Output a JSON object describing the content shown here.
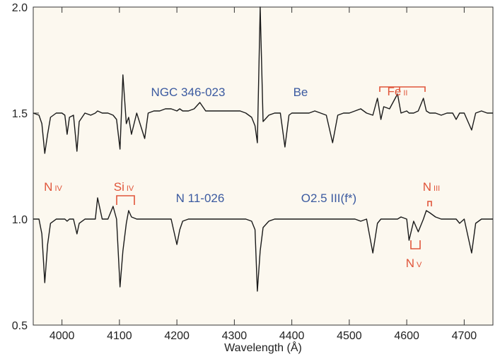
{
  "chart_data": {
    "type": "line",
    "x_label": "Wavelength (Å)",
    "xlim": [
      3950,
      4750
    ],
    "xticks": [
      4000,
      4100,
      4200,
      4300,
      4400,
      4500,
      4600,
      4700
    ],
    "ylim": [
      0.5,
      2.0
    ],
    "yticks": [
      0.5,
      {
        "value": 1,
        "label": "1.0"
      },
      1.5,
      {
        "value": 2,
        "label": "2.0"
      }
    ],
    "x": [
      3950,
      3960,
      3965,
      3970,
      3975,
      3980,
      3990,
      4000,
      4005,
      4009,
      4013,
      4020,
      4026,
      4030,
      4040,
      4050,
      4058,
      4062,
      4070,
      4080,
      4089,
      4095,
      4101,
      4106,
      4112,
      4116,
      4121,
      4130,
      4144,
      4150,
      4160,
      4170,
      4180,
      4190,
      4200,
      4205,
      4210,
      4220,
      4230,
      4240,
      4250,
      4260,
      4270,
      4280,
      4290,
      4300,
      4310,
      4320,
      4330,
      4336,
      4340,
      4345,
      4350,
      4360,
      4370,
      4380,
      4388,
      4395,
      4400,
      4410,
      4420,
      4430,
      4440,
      4450,
      4460,
      4471,
      4480,
      4490,
      4500,
      4510,
      4520,
      4530,
      4541,
      4549,
      4555,
      4560,
      4570,
      4584,
      4590,
      4600,
      4604,
      4612,
      4620,
      4629,
      4634,
      4640,
      4650,
      4660,
      4670,
      4680,
      4686,
      4692,
      4700,
      4713,
      4720,
      4730,
      4740,
      4750
    ],
    "series": [
      {
        "name": "NGC 346-023",
        "color": "#1a1a1a",
        "values": [
          1.5,
          1.49,
          1.45,
          1.31,
          1.4,
          1.48,
          1.5,
          1.5,
          1.49,
          1.4,
          1.48,
          1.49,
          1.32,
          1.46,
          1.5,
          1.49,
          1.5,
          1.51,
          1.5,
          1.5,
          1.49,
          1.47,
          1.33,
          1.68,
          1.45,
          1.48,
          1.4,
          1.5,
          1.38,
          1.5,
          1.51,
          1.51,
          1.52,
          1.52,
          1.51,
          1.52,
          1.51,
          1.51,
          1.52,
          1.55,
          1.51,
          1.51,
          1.51,
          1.51,
          1.51,
          1.51,
          1.51,
          1.5,
          1.48,
          1.44,
          1.36,
          2.0,
          1.46,
          1.49,
          1.5,
          1.5,
          1.34,
          1.49,
          1.5,
          1.5,
          1.5,
          1.5,
          1.51,
          1.5,
          1.49,
          1.36,
          1.49,
          1.5,
          1.5,
          1.51,
          1.52,
          1.5,
          1.49,
          1.57,
          1.47,
          1.53,
          1.52,
          1.59,
          1.5,
          1.51,
          1.5,
          1.5,
          1.51,
          1.57,
          1.51,
          1.5,
          1.5,
          1.49,
          1.5,
          1.5,
          1.47,
          1.5,
          1.5,
          1.42,
          1.5,
          1.51,
          1.5,
          1.5
        ]
      },
      {
        "name": "N 11-026",
        "color": "#1a1a1a",
        "values": [
          1.0,
          1.0,
          0.93,
          0.7,
          0.88,
          0.98,
          1.0,
          1.0,
          1.0,
          0.99,
          1.0,
          1.0,
          0.93,
          0.98,
          1.0,
          1.0,
          1.0,
          1.1,
          1.0,
          1.0,
          1.06,
          1.0,
          0.68,
          0.85,
          0.98,
          1.04,
          1.01,
          1.0,
          1.0,
          1.0,
          1.0,
          1.0,
          1.0,
          1.0,
          0.88,
          0.95,
          0.99,
          1.0,
          1.0,
          1.0,
          1.0,
          1.0,
          1.0,
          1.0,
          1.0,
          1.0,
          1.0,
          1.0,
          0.99,
          0.95,
          0.66,
          0.85,
          0.96,
          0.99,
          1.0,
          1.0,
          1.0,
          1.0,
          1.0,
          1.0,
          1.0,
          1.0,
          1.0,
          1.0,
          1.0,
          1.0,
          1.0,
          1.0,
          1.0,
          1.0,
          0.99,
          1.0,
          0.84,
          0.98,
          1.0,
          1.0,
          1.0,
          1.0,
          1.01,
          1.0,
          0.9,
          0.99,
          0.94,
          1.0,
          1.04,
          1.03,
          1.01,
          1.0,
          1.0,
          1.0,
          1.0,
          0.98,
          1.0,
          0.84,
          0.98,
          1.0,
          1.0,
          1.0
        ]
      }
    ],
    "annotations": [
      {
        "text": "NGC 346-023"
      },
      {
        "text": "Be"
      },
      {
        "text": "Fe",
        "ion": "II"
      },
      {
        "text": "N",
        "ion": "IV"
      },
      {
        "text": "Si",
        "ion": "IV"
      },
      {
        "text": "N 11-026"
      },
      {
        "text": "O2.5 III(f*)"
      },
      {
        "text": "N",
        "ion": "III"
      },
      {
        "text": "N",
        "ion": "V"
      }
    ]
  }
}
